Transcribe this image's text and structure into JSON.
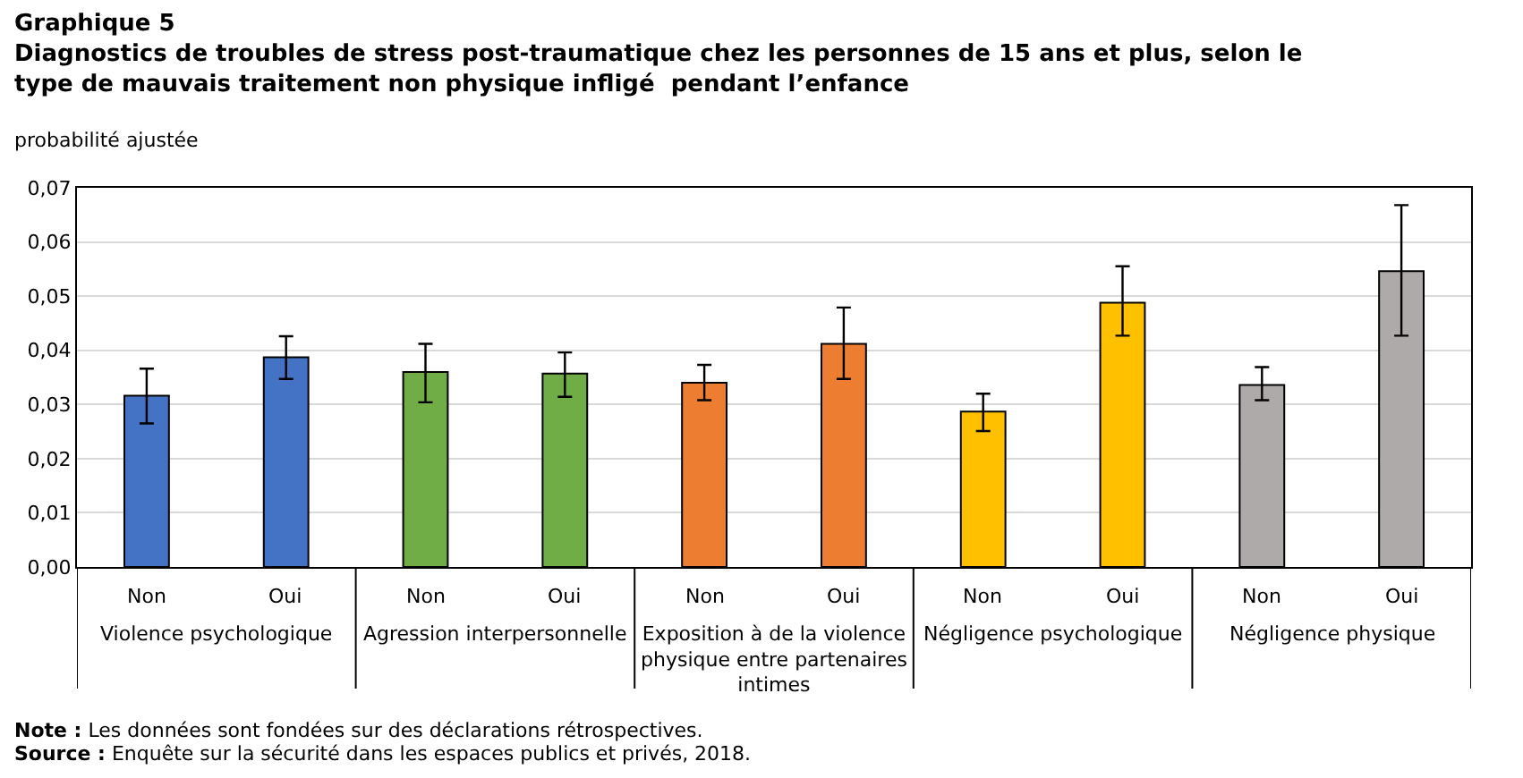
{
  "chart_data": {
    "type": "bar",
    "title": "Graphique 5",
    "subtitle": "Diagnostics de troubles de stress post-traumatique chez les personnes de 15 ans et plus, selon le type de mauvais traitement non physique infligé  pendant l’enfance",
    "ylabel": "probabilité ajustée",
    "categories": [
      "Non",
      "Oui",
      "Non",
      "Oui",
      "Non",
      "Oui",
      "Non",
      "Oui",
      "Non",
      "Oui"
    ],
    "values": [
      0.0316,
      0.0387,
      0.036,
      0.0357,
      0.034,
      0.0412,
      0.0287,
      0.0488,
      0.0336,
      0.0546
    ],
    "colors": [
      "#4472c4",
      "#4472c4",
      "#70ad47",
      "#70ad47",
      "#ed7d31",
      "#ed7d31",
      "#ffc000",
      "#ffc000",
      "#aeaaaa",
      "#aeaaaa"
    ],
    "errors": [
      [
        0.0265,
        0.0366
      ],
      [
        0.0347,
        0.0426
      ],
      [
        0.0304,
        0.0412
      ],
      [
        0.0314,
        0.0396
      ],
      [
        0.0308,
        0.0373
      ],
      [
        0.0347,
        0.0479
      ],
      [
        0.0251,
        0.032
      ],
      [
        0.0427,
        0.0555
      ],
      [
        0.0308,
        0.0369
      ],
      [
        0.0427,
        0.0668
      ]
    ],
    "ylim": [
      0,
      0.07
    ],
    "yticks": [
      {
        "value": 0,
        "label": "0,00"
      },
      {
        "value": 0.01,
        "label": "0,01"
      },
      {
        "value": 0.02,
        "label": "0,02"
      },
      {
        "value": 0.03,
        "label": "0,03"
      },
      {
        "value": 0.04,
        "label": "0,04"
      },
      {
        "value": 0.05,
        "label": "0,05"
      },
      {
        "value": 0.06,
        "label": "0,06"
      },
      {
        "value": 0.07,
        "label": "0,07"
      }
    ],
    "grid": "y",
    "annotations": [
      "Violence psychologique",
      "Agression interpersonnelle",
      "Exposition à de la violence physique entre partenaires intimes",
      "Négligence psychologique",
      "Négligence physique",
      "Note : Les données sont fondées sur des déclarations rétrospectives.",
      "Source : Enquête sur la sécurité dans les espaces publics et privés, 2018."
    ]
  }
}
